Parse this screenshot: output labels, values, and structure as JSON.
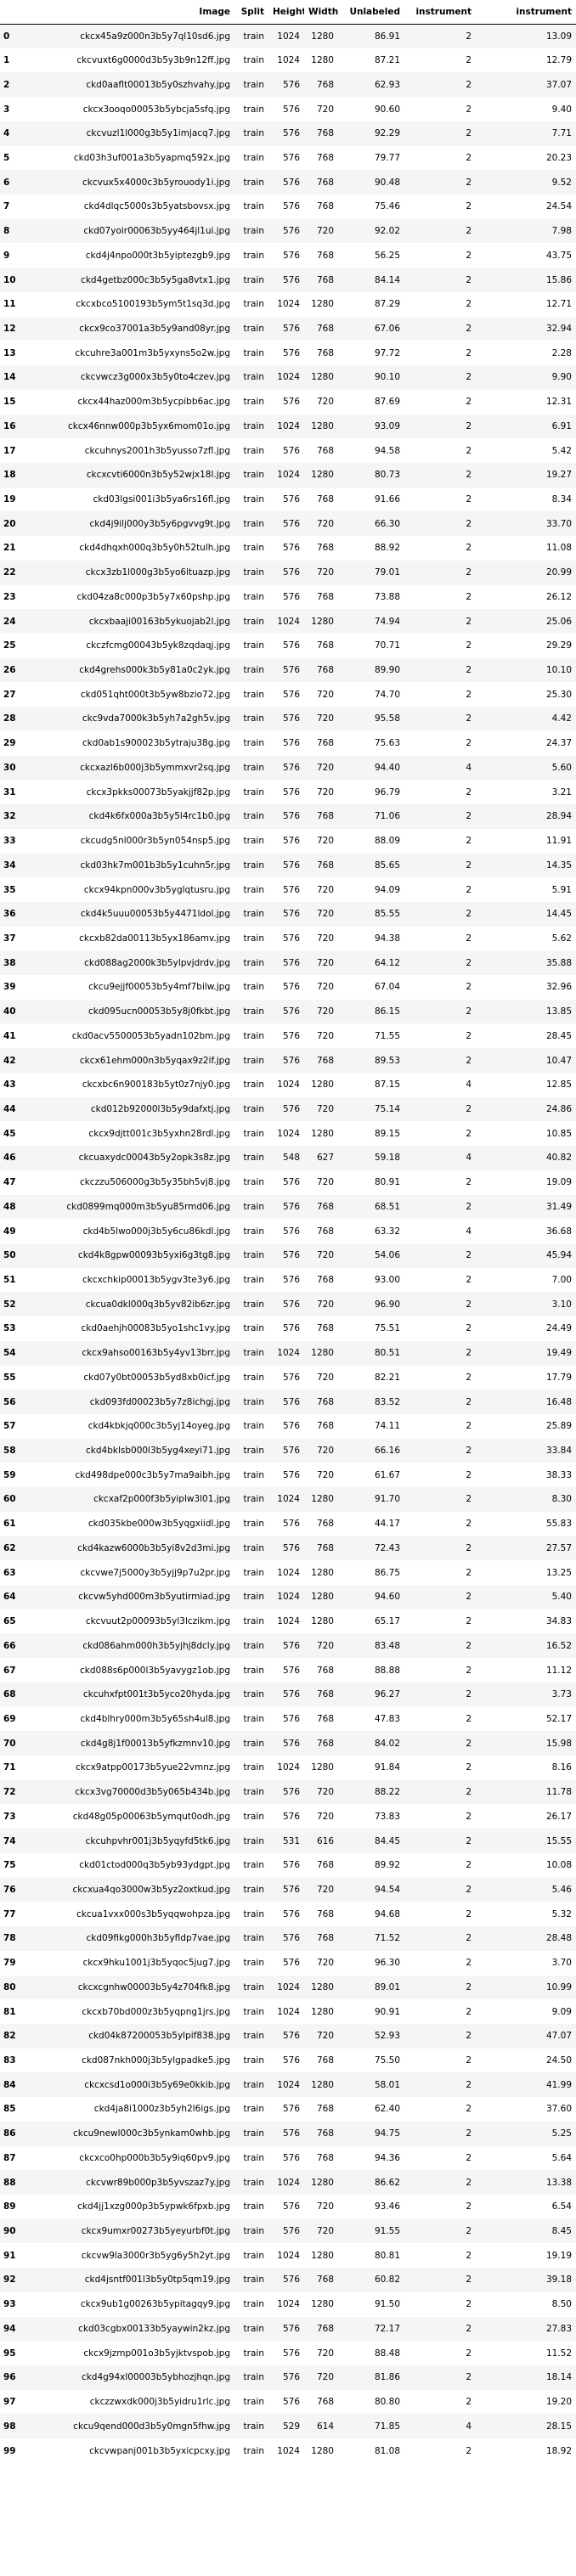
{
  "columns": [
    "",
    "Image",
    "Split",
    "Height",
    "Width",
    "Unlabeled",
    "instrument",
    "instrument"
  ],
  "rows": [
    [
      "0",
      "ckcx45a9z000n3b5y7ql10sd6.jpg",
      "train",
      "1024",
      "1280",
      "86.91",
      "2",
      "13.09"
    ],
    [
      "1",
      "ckcvuxt6g0000d3b5y3b9n12ff.jpg",
      "train",
      "1024",
      "1280",
      "87.21",
      "2",
      "12.79"
    ],
    [
      "2",
      "ckd0aaflt00013b5y0szhvahy.jpg",
      "train",
      "576",
      "768",
      "62.93",
      "2",
      "37.07"
    ],
    [
      "3",
      "ckcx3ooqo00053b5ybcja5sfq.jpg",
      "train",
      "576",
      "720",
      "90.60",
      "2",
      "9.40"
    ],
    [
      "4",
      "ckcvuzl1l000g3b5y1imjacq7.jpg",
      "train",
      "576",
      "768",
      "92.29",
      "2",
      "7.71"
    ],
    [
      "5",
      "ckd03h3uf001a3b5yapmq592x.jpg",
      "train",
      "576",
      "768",
      "79.77",
      "2",
      "20.23"
    ],
    [
      "6",
      "ckcvux5x4000c3b5yrouody1i.jpg",
      "train",
      "576",
      "768",
      "90.48",
      "2",
      "9.52"
    ],
    [
      "7",
      "ckd4dlqc5000s3b5yatsbovsx.jpg",
      "train",
      "576",
      "768",
      "75.46",
      "2",
      "24.54"
    ],
    [
      "8",
      "ckd07yoir00063b5yy464jl1ui.jpg",
      "train",
      "576",
      "720",
      "92.02",
      "2",
      "7.98"
    ],
    [
      "9",
      "ckd4j4npo000t3b5yiptezgb9.jpg",
      "train",
      "576",
      "768",
      "56.25",
      "2",
      "43.75"
    ],
    [
      "10",
      "ckd4getbz000c3b5y5ga8vtx1.jpg",
      "train",
      "576",
      "768",
      "84.14",
      "2",
      "15.86"
    ],
    [
      "11",
      "ckcxbco5100193b5ym5t1sq3d.jpg",
      "train",
      "1024",
      "1280",
      "87.29",
      "2",
      "12.71"
    ],
    [
      "12",
      "ckcx9co37001a3b5y9and08yr.jpg",
      "train",
      "576",
      "768",
      "67.06",
      "2",
      "32.94"
    ],
    [
      "13",
      "ckcuhre3a001m3b5yxyns5o2w.jpg",
      "train",
      "576",
      "768",
      "97.72",
      "2",
      "2.28"
    ],
    [
      "14",
      "ckcvwcz3g000x3b5y0to4czev.jpg",
      "train",
      "1024",
      "1280",
      "90.10",
      "2",
      "9.90"
    ],
    [
      "15",
      "ckcx44haz000m3b5ycpibb6ac.jpg",
      "train",
      "576",
      "720",
      "87.69",
      "2",
      "12.31"
    ],
    [
      "16",
      "ckcx46nnw000p3b5yx6mom01o.jpg",
      "train",
      "1024",
      "1280",
      "93.09",
      "2",
      "6.91"
    ],
    [
      "17",
      "ckcuhnys2001h3b5yusso7zfl.jpg",
      "train",
      "576",
      "768",
      "94.58",
      "2",
      "5.42"
    ],
    [
      "18",
      "ckcxcvti6000n3b5y52wjx18l.jpg",
      "train",
      "1024",
      "1280",
      "80.73",
      "2",
      "19.27"
    ],
    [
      "19",
      "ckd03lgsi001i3b5ya6rs16fl.jpg",
      "train",
      "576",
      "768",
      "91.66",
      "2",
      "8.34"
    ],
    [
      "20",
      "ckd4j9ilj000y3b5y6pgvvg9t.jpg",
      "train",
      "576",
      "720",
      "66.30",
      "2",
      "33.70"
    ],
    [
      "21",
      "ckd4dhqxh000q3b5y0h52tulh.jpg",
      "train",
      "576",
      "768",
      "88.92",
      "2",
      "11.08"
    ],
    [
      "22",
      "ckcx3zb1l000g3b5yo6ltuazp.jpg",
      "train",
      "576",
      "720",
      "79.01",
      "2",
      "20.99"
    ],
    [
      "23",
      "ckd04za8c000p3b5y7x60pshp.jpg",
      "train",
      "576",
      "768",
      "73.88",
      "2",
      "26.12"
    ],
    [
      "24",
      "ckcxbaaji00163b5ykuojab2l.jpg",
      "train",
      "1024",
      "1280",
      "74.94",
      "2",
      "25.06"
    ],
    [
      "25",
      "ckczfcmg00043b5yk8zqdaqj.jpg",
      "train",
      "576",
      "768",
      "70.71",
      "2",
      "29.29"
    ],
    [
      "26",
      "ckd4grehs000k3b5y81a0c2yk.jpg",
      "train",
      "576",
      "768",
      "89.90",
      "2",
      "10.10"
    ],
    [
      "27",
      "ckd051qht000t3b5yw8bzio72.jpg",
      "train",
      "576",
      "720",
      "74.70",
      "2",
      "25.30"
    ],
    [
      "28",
      "ckc9vda7000k3b5yh7a2gh5v.jpg",
      "train",
      "576",
      "720",
      "95.58",
      "2",
      "4.42"
    ],
    [
      "29",
      "ckd0ab1s900023b5ytraju38g.jpg",
      "train",
      "576",
      "768",
      "75.63",
      "2",
      "24.37"
    ],
    [
      "30",
      "ckcxazl6b000j3b5ymmxvr2sq.jpg",
      "train",
      "576",
      "720",
      "94.40",
      "4",
      "5.60"
    ],
    [
      "31",
      "ckcx3pkks00073b5yakjjf82p.jpg",
      "train",
      "576",
      "720",
      "96.79",
      "2",
      "3.21"
    ],
    [
      "32",
      "ckd4k6fx000a3b5y5l4rc1b0.jpg",
      "train",
      "576",
      "768",
      "71.06",
      "2",
      "28.94"
    ],
    [
      "33",
      "ckcudg5nl000r3b5yn054nsp5.jpg",
      "train",
      "576",
      "720",
      "88.09",
      "2",
      "11.91"
    ],
    [
      "34",
      "ckd03hk7m001b3b5y1cuhn5r.jpg",
      "train",
      "576",
      "768",
      "85.65",
      "2",
      "14.35"
    ],
    [
      "35",
      "ckcx94kpn000v3b5yglqtusru.jpg",
      "train",
      "576",
      "720",
      "94.09",
      "2",
      "5.91"
    ],
    [
      "36",
      "ckd4k5uuu00053b5y4471ldol.jpg",
      "train",
      "576",
      "720",
      "85.55",
      "2",
      "14.45"
    ],
    [
      "37",
      "ckcxb82da00113b5yx186amv.jpg",
      "train",
      "576",
      "720",
      "94.38",
      "2",
      "5.62"
    ],
    [
      "38",
      "ckd088ag2000k3b5ylpvjdrdv.jpg",
      "train",
      "576",
      "720",
      "64.12",
      "2",
      "35.88"
    ],
    [
      "39",
      "ckcu9ejjf00053b5y4mf7bilw.jpg",
      "train",
      "576",
      "720",
      "67.04",
      "2",
      "32.96"
    ],
    [
      "40",
      "ckd095ucn00053b5y8j0fkbt.jpg",
      "train",
      "576",
      "720",
      "86.15",
      "2",
      "13.85"
    ],
    [
      "41",
      "ckd0acv5500053b5yadn102bm.jpg",
      "train",
      "576",
      "720",
      "71.55",
      "2",
      "28.45"
    ],
    [
      "42",
      "ckcx61ehm000n3b5yqax9z2if.jpg",
      "train",
      "576",
      "768",
      "89.53",
      "2",
      "10.47"
    ],
    [
      "43",
      "ckcxbc6n900183b5yt0z7njy0.jpg",
      "train",
      "1024",
      "1280",
      "87.15",
      "4",
      "12.85"
    ],
    [
      "44",
      "ckd012b92000l3b5y9dafxtj.jpg",
      "train",
      "576",
      "720",
      "75.14",
      "2",
      "24.86"
    ],
    [
      "45",
      "ckcx9djtt001c3b5yxhn28rdl.jpg",
      "train",
      "1024",
      "1280",
      "89.15",
      "2",
      "10.85"
    ],
    [
      "46",
      "ckcuaxydc00043b5y2opk3s8z.jpg",
      "train",
      "548",
      "627",
      "59.18",
      "4",
      "40.82"
    ],
    [
      "47",
      "ckczzu506000g3b5y35bh5vj8.jpg",
      "train",
      "576",
      "720",
      "80.91",
      "2",
      "19.09"
    ],
    [
      "48",
      "ckd0899mq000m3b5yu85rmd06.jpg",
      "train",
      "576",
      "768",
      "68.51",
      "2",
      "31.49"
    ],
    [
      "49",
      "ckd4b5lwo000j3b5y6cu86kdl.jpg",
      "train",
      "576",
      "768",
      "63.32",
      "4",
      "36.68"
    ],
    [
      "50",
      "ckd4k8gpw00093b5yxi6g3tg8.jpg",
      "train",
      "576",
      "720",
      "54.06",
      "2",
      "45.94"
    ],
    [
      "51",
      "ckcxchkip00013b5ygv3te3y6.jpg",
      "train",
      "576",
      "768",
      "93.00",
      "2",
      "7.00"
    ],
    [
      "52",
      "ckcua0dkl000q3b5yv82ib6zr.jpg",
      "train",
      "576",
      "720",
      "96.90",
      "2",
      "3.10"
    ],
    [
      "53",
      "ckd0aehjh00083b5yo1shc1vy.jpg",
      "train",
      "576",
      "768",
      "75.51",
      "2",
      "24.49"
    ],
    [
      "54",
      "ckcx9ahso00163b5y4yv13brr.jpg",
      "train",
      "1024",
      "1280",
      "80.51",
      "2",
      "19.49"
    ],
    [
      "55",
      "ckd07y0bt00053b5yd8xb0icf.jpg",
      "train",
      "576",
      "720",
      "82.21",
      "2",
      "17.79"
    ],
    [
      "56",
      "ckd093fd00023b5y7z8ichgj.jpg",
      "train",
      "576",
      "768",
      "83.52",
      "2",
      "16.48"
    ],
    [
      "57",
      "ckd4kbkjq000c3b5yj14oyeg.jpg",
      "train",
      "576",
      "768",
      "74.11",
      "2",
      "25.89"
    ],
    [
      "58",
      "ckd4bklsb000l3b5yg4xeyi71.jpg",
      "train",
      "576",
      "720",
      "66.16",
      "2",
      "33.84"
    ],
    [
      "59",
      "ckd498dpe000c3b5y7ma9aibh.jpg",
      "train",
      "576",
      "720",
      "61.67",
      "2",
      "38.33"
    ],
    [
      "60",
      "ckcxaf2p000f3b5yiplw3l01.jpg",
      "train",
      "1024",
      "1280",
      "91.70",
      "2",
      "8.30"
    ],
    [
      "61",
      "ckd035kbe000w3b5yqgxiidl.jpg",
      "train",
      "576",
      "768",
      "44.17",
      "2",
      "55.83"
    ],
    [
      "62",
      "ckd4kazw6000b3b5yi8v2d3mi.jpg",
      "train",
      "576",
      "768",
      "72.43",
      "2",
      "27.57"
    ],
    [
      "63",
      "ckcvwe7j5000y3b5yjj9p7u2pr.jpg",
      "train",
      "1024",
      "1280",
      "86.75",
      "2",
      "13.25"
    ],
    [
      "64",
      "ckcvw5yhd000m3b5yutirmiad.jpg",
      "train",
      "1024",
      "1280",
      "94.60",
      "2",
      "5.40"
    ],
    [
      "65",
      "ckcvuut2p00093b5yl3lczikm.jpg",
      "train",
      "1024",
      "1280",
      "65.17",
      "2",
      "34.83"
    ],
    [
      "66",
      "ckd086ahm000h3b5yjhj8dcly.jpg",
      "train",
      "576",
      "720",
      "83.48",
      "2",
      "16.52"
    ],
    [
      "67",
      "ckd088s6p000l3b5yavygz1ob.jpg",
      "train",
      "576",
      "768",
      "88.88",
      "2",
      "11.12"
    ],
    [
      "68",
      "ckcuhxfpt001t3b5yco20hyda.jpg",
      "train",
      "576",
      "768",
      "96.27",
      "2",
      "3.73"
    ],
    [
      "69",
      "ckd4blhry000m3b5y65sh4ul8.jpg",
      "train",
      "576",
      "768",
      "47.83",
      "2",
      "52.17"
    ],
    [
      "70",
      "ckd4g8j1f00013b5yfkzmnv10.jpg",
      "train",
      "576",
      "768",
      "84.02",
      "2",
      "15.98"
    ],
    [
      "71",
      "ckcx9atpp00173b5yue22vmnz.jpg",
      "train",
      "1024",
      "1280",
      "91.84",
      "2",
      "8.16"
    ],
    [
      "72",
      "ckcx3vg70000d3b5y065b434b.jpg",
      "train",
      "576",
      "720",
      "88.22",
      "2",
      "11.78"
    ],
    [
      "73",
      "ckd48g05p00063b5ymqut0odh.jpg",
      "train",
      "576",
      "720",
      "73.83",
      "2",
      "26.17"
    ],
    [
      "74",
      "ckcuhpvhr001j3b5yqyfd5tk6.jpg",
      "train",
      "531",
      "616",
      "84.45",
      "2",
      "15.55"
    ],
    [
      "75",
      "ckd01ctod000q3b5yb93ydgpt.jpg",
      "train",
      "576",
      "768",
      "89.92",
      "2",
      "10.08"
    ],
    [
      "76",
      "ckcxua4qo3000w3b5yz2oxtkud.jpg",
      "train",
      "576",
      "720",
      "94.54",
      "2",
      "5.46"
    ],
    [
      "77",
      "ckcua1vxx000s3b5yqqwohpza.jpg",
      "train",
      "576",
      "768",
      "94.68",
      "2",
      "5.32"
    ],
    [
      "78",
      "ckd09fikg000h3b5yfldp7vae.jpg",
      "train",
      "576",
      "768",
      "71.52",
      "2",
      "28.48"
    ],
    [
      "79",
      "ckcx9hku1001j3b5yqoc5jug7.jpg",
      "train",
      "576",
      "720",
      "96.30",
      "2",
      "3.70"
    ],
    [
      "80",
      "ckcxcgnhw00003b5y4z704fk8.jpg",
      "train",
      "1024",
      "1280",
      "89.01",
      "2",
      "10.99"
    ],
    [
      "81",
      "ckcxb70bd000z3b5yqpng1jrs.jpg",
      "train",
      "1024",
      "1280",
      "90.91",
      "2",
      "9.09"
    ],
    [
      "82",
      "ckd04k87200053b5ylpif838.jpg",
      "train",
      "576",
      "720",
      "52.93",
      "2",
      "47.07"
    ],
    [
      "83",
      "ckd087nkh000j3b5ylgpadke5.jpg",
      "train",
      "576",
      "768",
      "75.50",
      "2",
      "24.50"
    ],
    [
      "84",
      "ckcxcsd1o000i3b5y69e0kkib.jpg",
      "train",
      "1024",
      "1280",
      "58.01",
      "2",
      "41.99"
    ],
    [
      "85",
      "ckd4ja8i1000z3b5yh2l6igs.jpg",
      "train",
      "576",
      "768",
      "62.40",
      "2",
      "37.60"
    ],
    [
      "86",
      "ckcu9newl000c3b5ynkam0whb.jpg",
      "train",
      "576",
      "768",
      "94.75",
      "2",
      "5.25"
    ],
    [
      "87",
      "ckcxco0hp000b3b5y9iq60pv9.jpg",
      "train",
      "576",
      "768",
      "94.36",
      "2",
      "5.64"
    ],
    [
      "88",
      "ckcvwr89b000p3b5yvszaz7y.jpg",
      "train",
      "1024",
      "1280",
      "86.62",
      "2",
      "13.38"
    ],
    [
      "89",
      "ckd4jj1xzg000p3b5ypwk6fpxb.jpg",
      "train",
      "576",
      "720",
      "93.46",
      "2",
      "6.54"
    ],
    [
      "90",
      "ckcx9umxr00273b5yeyurbf0t.jpg",
      "train",
      "576",
      "720",
      "91.55",
      "2",
      "8.45"
    ],
    [
      "91",
      "ckcvw9la3000r3b5yg6y5h2yt.jpg",
      "train",
      "1024",
      "1280",
      "80.81",
      "2",
      "19.19"
    ],
    [
      "92",
      "ckd4jsntf001l3b5y0tp5qm19.jpg",
      "train",
      "576",
      "768",
      "60.82",
      "2",
      "39.18"
    ],
    [
      "93",
      "ckcx9ub1g00263b5ypitagqy9.jpg",
      "train",
      "1024",
      "1280",
      "91.50",
      "2",
      "8.50"
    ],
    [
      "94",
      "ckd03cgbx00133b5yaywin2kz.jpg",
      "train",
      "576",
      "768",
      "72.17",
      "2",
      "27.83"
    ],
    [
      "95",
      "ckcx9jzmp001o3b5yjktvspob.jpg",
      "train",
      "576",
      "720",
      "88.48",
      "2",
      "11.52"
    ],
    [
      "96",
      "ckd4g94xl00003b5ybhozjhqn.jpg",
      "train",
      "576",
      "720",
      "81.86",
      "2",
      "18.14"
    ],
    [
      "97",
      "ckczzwxdk000j3b5yidru1rlc.jpg",
      "train",
      "576",
      "768",
      "80.80",
      "2",
      "19.20"
    ],
    [
      "98",
      "ckcu9qend000d3b5y0mgn5fhw.jpg",
      "train",
      "529",
      "614",
      "71.85",
      "4",
      "28.15"
    ],
    [
      "99",
      "ckcvwpanj001b3b5yxicpcxy.jpg",
      "train",
      "1024",
      "1280",
      "81.08",
      "2",
      "18.92"
    ]
  ]
}
